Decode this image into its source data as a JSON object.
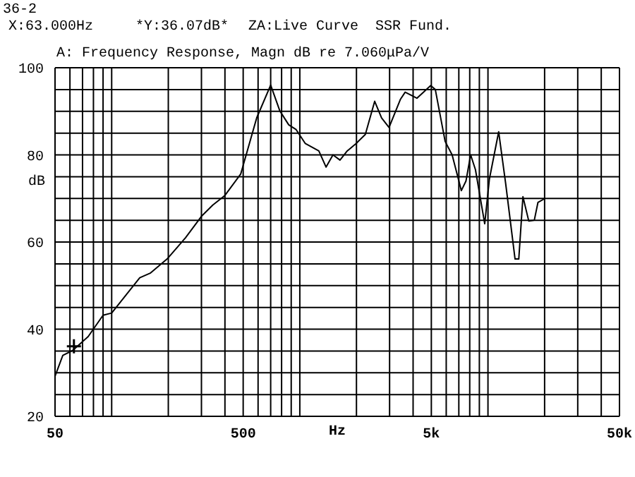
{
  "chart_data": {
    "type": "line",
    "title": "A: Frequency Response, Magn dB re 7.060μPa/V",
    "xlabel": "Hz",
    "ylabel": "dB",
    "annotations": [
      "36-2",
      "X:63.000Hz",
      "*Y:36.07dB*",
      "ZA:Live Curve",
      "SSR Fund."
    ],
    "log": "x",
    "grid": true,
    "marker": "none",
    "line_style": "solid",
    "xlim": [
      50,
      50000
    ],
    "ylim": [
      20,
      100
    ],
    "xticks": [
      50,
      {
        "value": 60,
        "label": null
      },
      {
        "value": 70,
        "label": null
      },
      {
        "value": 80,
        "label": null
      },
      {
        "value": 90,
        "label": null
      },
      {
        "value": 100,
        "label": null
      },
      {
        "value": 200,
        "label": null
      },
      {
        "value": 300,
        "label": null
      },
      {
        "value": 400,
        "label": null
      },
      500,
      {
        "value": 600,
        "label": null
      },
      {
        "value": 700,
        "label": null
      },
      {
        "value": 800,
        "label": null
      },
      {
        "value": 900,
        "label": null
      },
      {
        "value": 1000,
        "label": null
      },
      {
        "value": 2000,
        "label": null
      },
      {
        "value": 3000,
        "label": null
      },
      {
        "value": 4000,
        "label": null
      },
      {
        "value": 5000,
        "label": "5k"
      },
      {
        "value": 6000,
        "label": null
      },
      {
        "value": 7000,
        "label": null
      },
      {
        "value": 8000,
        "label": null
      },
      {
        "value": 9000,
        "label": null
      },
      {
        "value": 10000,
        "label": null
      },
      {
        "value": 20000,
        "label": null
      },
      {
        "value": 30000,
        "label": null
      },
      {
        "value": 40000,
        "label": null
      },
      {
        "value": 50000,
        "label": "50k"
      }
    ],
    "yticks": [
      20,
      {
        "value": 25,
        "label": null
      },
      {
        "value": 30,
        "label": null
      },
      {
        "value": 35,
        "label": null
      },
      40,
      {
        "value": 45,
        "label": null
      },
      {
        "value": 50,
        "label": null
      },
      {
        "value": 55,
        "label": null
      },
      60,
      {
        "value": 65,
        "label": null
      },
      {
        "value": 70,
        "label": null
      },
      {
        "value": 75,
        "label": null
      },
      80,
      {
        "value": 85,
        "label": null
      },
      {
        "value": 90,
        "label": null
      },
      {
        "value": 95,
        "label": null
      },
      100
    ],
    "x": [
      50,
      55,
      62,
      75,
      90,
      100,
      141,
      161,
      197,
      247,
      300,
      345,
      400,
      485,
      590,
      700,
      783,
      873,
      956,
      1070,
      1262,
      1379,
      1500,
      1635,
      1786,
      1990,
      2230,
      2500,
      2720,
      2980,
      3430,
      3630,
      4190,
      4960,
      5250,
      5920,
      6450,
      7220,
      7640,
      8090,
      8580,
      9610,
      10180,
      11400,
      12420,
      13930,
      14580,
      15340,
      16480,
      17630,
      18440,
      20090
    ],
    "series": [
      {
        "type": "scatter",
        "x": [
          63
        ],
        "values": [
          36.07
        ],
        "color": "#000000",
        "marker": "cross"
      },
      {
        "color": "#000000",
        "values": [
          29.2,
          34.0,
          35.1,
          38.3,
          43.2,
          43.7,
          51.8,
          52.9,
          56.1,
          61.0,
          65.9,
          68.5,
          70.7,
          75.6,
          88.5,
          96.0,
          90.1,
          86.9,
          85.8,
          82.6,
          80.9,
          77.2,
          80.0,
          78.8,
          80.9,
          82.6,
          84.7,
          92.3,
          88.5,
          86.3,
          92.8,
          94.4,
          93.0,
          95.9,
          95.0,
          83.1,
          80.0,
          71.8,
          74.0,
          80.0,
          76.6,
          64.2,
          74.5,
          85.3,
          73.4,
          56.1,
          56.1,
          70.4,
          64.8,
          65.0,
          69.1,
          70.0
        ]
      }
    ]
  }
}
